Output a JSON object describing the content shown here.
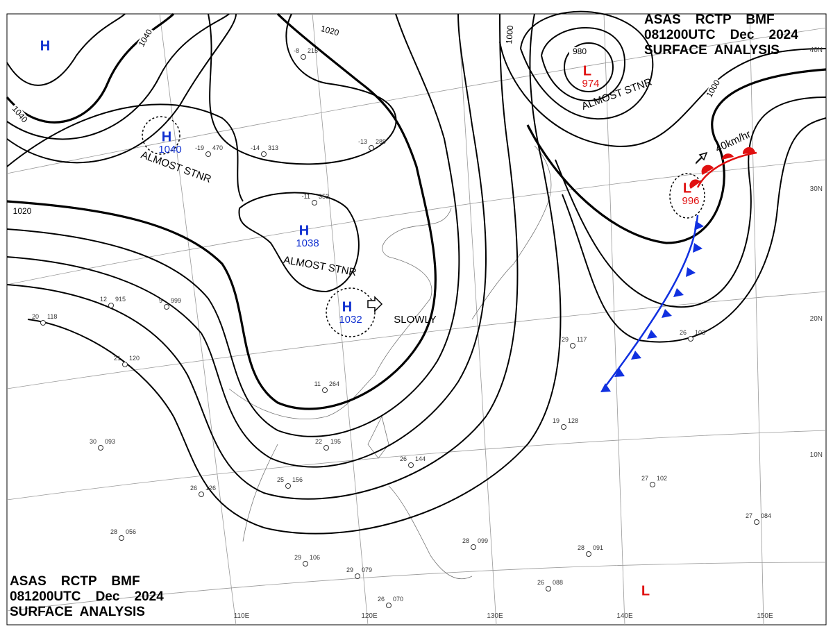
{
  "header": {
    "lines": [
      "ASAS    RCTP    BMF",
      "081200UTC    Dec    2024",
      "SURFACE  ANALYSIS"
    ]
  },
  "footer": {
    "lines": [
      "ASAS    RCTP    BMF",
      "081200UTC    Dec    2024",
      "SURFACE  ANALYSIS"
    ]
  },
  "centers": [
    {
      "type": "H",
      "pressure": null
    },
    {
      "type": "H",
      "pressure": "1040"
    },
    {
      "type": "H",
      "pressure": "1038"
    },
    {
      "type": "H",
      "pressure": "1032"
    },
    {
      "type": "L",
      "pressure": "974"
    },
    {
      "type": "L",
      "pressure": "996"
    },
    {
      "type": "L",
      "pressure": null
    }
  ],
  "annotations": [
    "ALMOST STNR",
    "ALMOST STNR",
    "ALMOST STNR",
    "SLOWLY",
    "40km/hr"
  ],
  "isobar_labels": [
    "1040",
    "1040",
    "1020",
    "1020",
    "1000",
    "980",
    "1000"
  ],
  "latitudes": [
    "40N",
    "30N",
    "20N",
    "10N"
  ],
  "longitudes": [
    "110E",
    "120E",
    "130E",
    "140E",
    "150E"
  ],
  "stations": [
    {
      "temp": "12",
      "pressure": "915"
    },
    {
      "temp": "9",
      "pressure": "999"
    },
    {
      "temp": "20",
      "pressure": "118"
    },
    {
      "temp": "21",
      "pressure": "120"
    },
    {
      "temp": "30",
      "pressure": "093"
    },
    {
      "temp": "26",
      "pressure": "126"
    },
    {
      "temp": "28",
      "pressure": "056"
    },
    {
      "temp": "29",
      "pressure": "106"
    },
    {
      "temp": "29",
      "pressure": "079"
    },
    {
      "temp": "26",
      "pressure": "070"
    },
    {
      "temp": "25",
      "pressure": "156"
    },
    {
      "temp": "22",
      "pressure": "195"
    },
    {
      "temp": "26",
      "pressure": "144"
    },
    {
      "temp": "28",
      "pressure": "099"
    },
    {
      "temp": "28",
      "pressure": "091"
    },
    {
      "temp": "26",
      "pressure": "088"
    },
    {
      "temp": "27",
      "pressure": "102"
    },
    {
      "temp": "27",
      "pressure": "084"
    },
    {
      "temp": "26",
      "pressure": "103"
    },
    {
      "temp": "29",
      "pressure": "117"
    },
    {
      "temp": "19",
      "pressure": "128"
    },
    {
      "temp": "11",
      "pressure": "264"
    },
    {
      "temp": "-13",
      "pressure": "289"
    },
    {
      "temp": "-11",
      "pressure": "353"
    },
    {
      "temp": "-8",
      "pressure": "215"
    },
    {
      "temp": "-19",
      "pressure": "470"
    },
    {
      "temp": "-14",
      "pressure": "313"
    }
  ]
}
